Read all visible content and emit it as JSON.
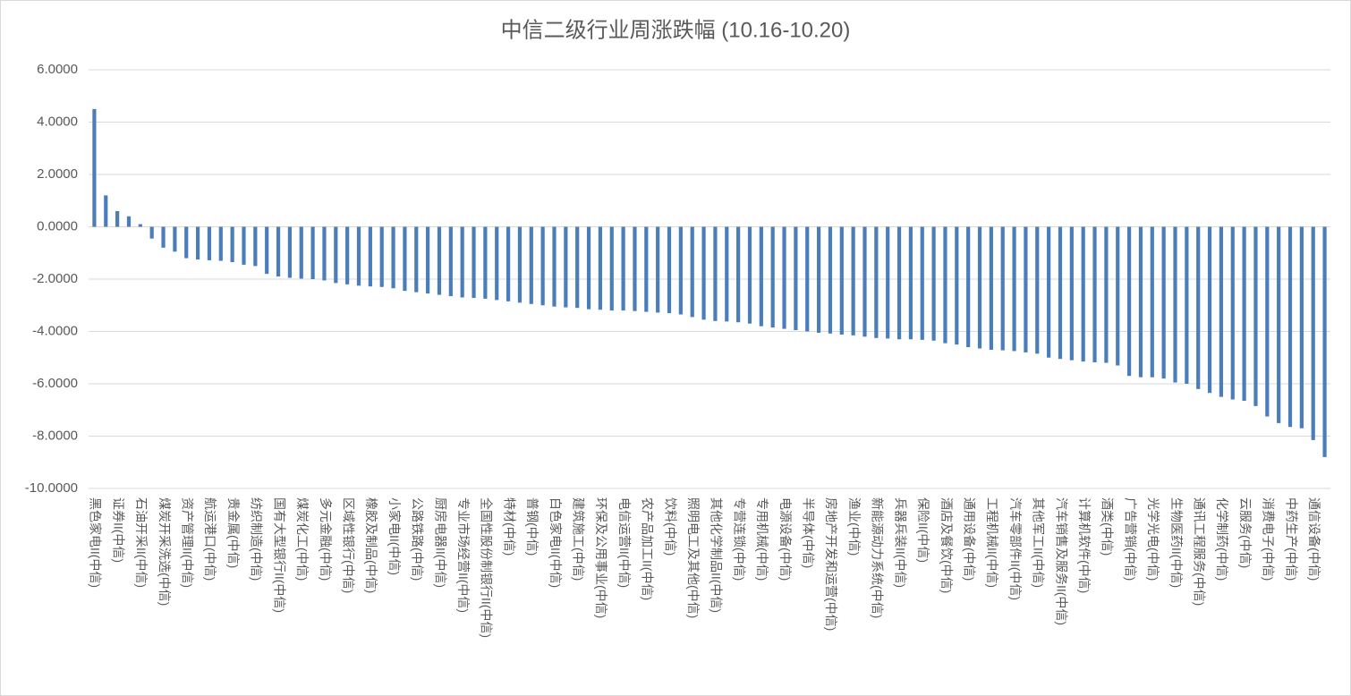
{
  "chart_data": {
    "type": "bar",
    "title": "中信二级行业周涨跌幅 (10.16-10.20)",
    "categories": [
      "黑色家电II(中信)",
      null,
      "证券II(中信)",
      null,
      "石油开采II(中信)",
      null,
      "煤炭开采洗选(中信)",
      null,
      "资产管理II(中信)",
      null,
      "航运港口(中信)",
      null,
      "贵金属(中信)",
      null,
      "纺织制造(中信)",
      null,
      "国有大型银行II(中信)",
      null,
      "煤炭化工(中信)",
      null,
      "多元金融(中信)",
      null,
      "区域性银行(中信)",
      null,
      "橡胶及制品(中信)",
      null,
      "小家电II(中信)",
      null,
      "公路铁路(中信)",
      null,
      "厨房电器II(中信)",
      null,
      "专业市场经营II(中信)",
      null,
      "全国性股份制银行II(中信)",
      null,
      "特材(中信)",
      null,
      "普钢(中信)",
      null,
      "白色家电II(中信)",
      null,
      "建筑施工(中信)",
      null,
      "环保及公用事业(中信)",
      null,
      "电信运营II(中信)",
      null,
      "农产品加工II(中信)",
      null,
      "饮料(中信)",
      null,
      "照明电工及其他(中信)",
      null,
      "其他化学制品II(中信)",
      null,
      "专营连锁(中信)",
      null,
      "专用机械(中信)",
      null,
      "电源设备(中信)",
      null,
      "半导体(中信)",
      null,
      "房地产开发和运营(中信)",
      null,
      "渔业(中信)",
      null,
      "新能源动力系统(中信)",
      null,
      "兵器兵装II(中信)",
      null,
      "保险II(中信)",
      null,
      "酒店及餐饮(中信)",
      null,
      "通用设备(中信)",
      null,
      "工程机械II(中信)",
      null,
      "汽车零部件II(中信)",
      null,
      "其他军工II(中信)",
      null,
      "汽车销售及服务II(中信)",
      null,
      "计算机软件(中信)",
      null,
      "酒类(中信)",
      null,
      "广告营销(中信)",
      null,
      "光学光电(中信)",
      null,
      "生物医药II(中信)",
      null,
      "通讯工程服务(中信)",
      null,
      "化学制药(中信)",
      null,
      "云服务(中信)",
      null,
      "消费电子(中信)",
      null,
      "中药生产(中信)",
      null,
      "通信设备(中信)",
      null
    ],
    "values": [
      4.5,
      1.2,
      0.6,
      0.4,
      0.1,
      -0.45,
      -0.8,
      -0.95,
      -1.2,
      -1.25,
      -1.28,
      -1.3,
      -1.35,
      -1.45,
      -1.5,
      -1.8,
      -1.9,
      -1.95,
      -1.98,
      -2.0,
      -2.05,
      -2.15,
      -2.2,
      -2.25,
      -2.28,
      -2.3,
      -2.35,
      -2.45,
      -2.5,
      -2.55,
      -2.6,
      -2.65,
      -2.7,
      -2.72,
      -2.75,
      -2.8,
      -2.85,
      -2.9,
      -2.95,
      -3.0,
      -3.05,
      -3.08,
      -3.1,
      -3.15,
      -3.17,
      -3.2,
      -3.2,
      -3.22,
      -3.25,
      -3.28,
      -3.3,
      -3.35,
      -3.45,
      -3.55,
      -3.6,
      -3.62,
      -3.65,
      -3.7,
      -3.8,
      -3.85,
      -3.9,
      -3.95,
      -4.0,
      -4.05,
      -4.08,
      -4.12,
      -4.15,
      -4.2,
      -4.25,
      -4.27,
      -4.3,
      -4.3,
      -4.32,
      -4.35,
      -4.45,
      -4.5,
      -4.6,
      -4.65,
      -4.7,
      -4.72,
      -4.75,
      -4.8,
      -4.85,
      -5.0,
      -5.05,
      -5.1,
      -5.15,
      -5.18,
      -5.2,
      -5.3,
      -5.7,
      -5.75,
      -5.75,
      -5.8,
      -5.95,
      -6.0,
      -6.2,
      -6.35,
      -6.5,
      -6.6,
      -6.65,
      -6.85,
      -7.25,
      -7.5,
      -7.65,
      -7.7,
      -8.15,
      -8.8
    ],
    "color": "#4a7ebb",
    "ylim": [
      -10,
      6
    ],
    "yticks": [
      {
        "value": -10,
        "label": "-10.0000"
      },
      {
        "value": -8,
        "label": "-8.0000"
      },
      {
        "value": -6,
        "label": "-6.0000"
      },
      {
        "value": -4,
        "label": "-4.0000"
      },
      {
        "value": -2,
        "label": "-2.0000"
      },
      {
        "value": 0,
        "label": "0.0000"
      },
      {
        "value": 2,
        "label": "2.0000"
      },
      {
        "value": 4,
        "label": "4.0000"
      },
      {
        "value": 6,
        "label": "6.0000"
      }
    ],
    "grid": true
  }
}
